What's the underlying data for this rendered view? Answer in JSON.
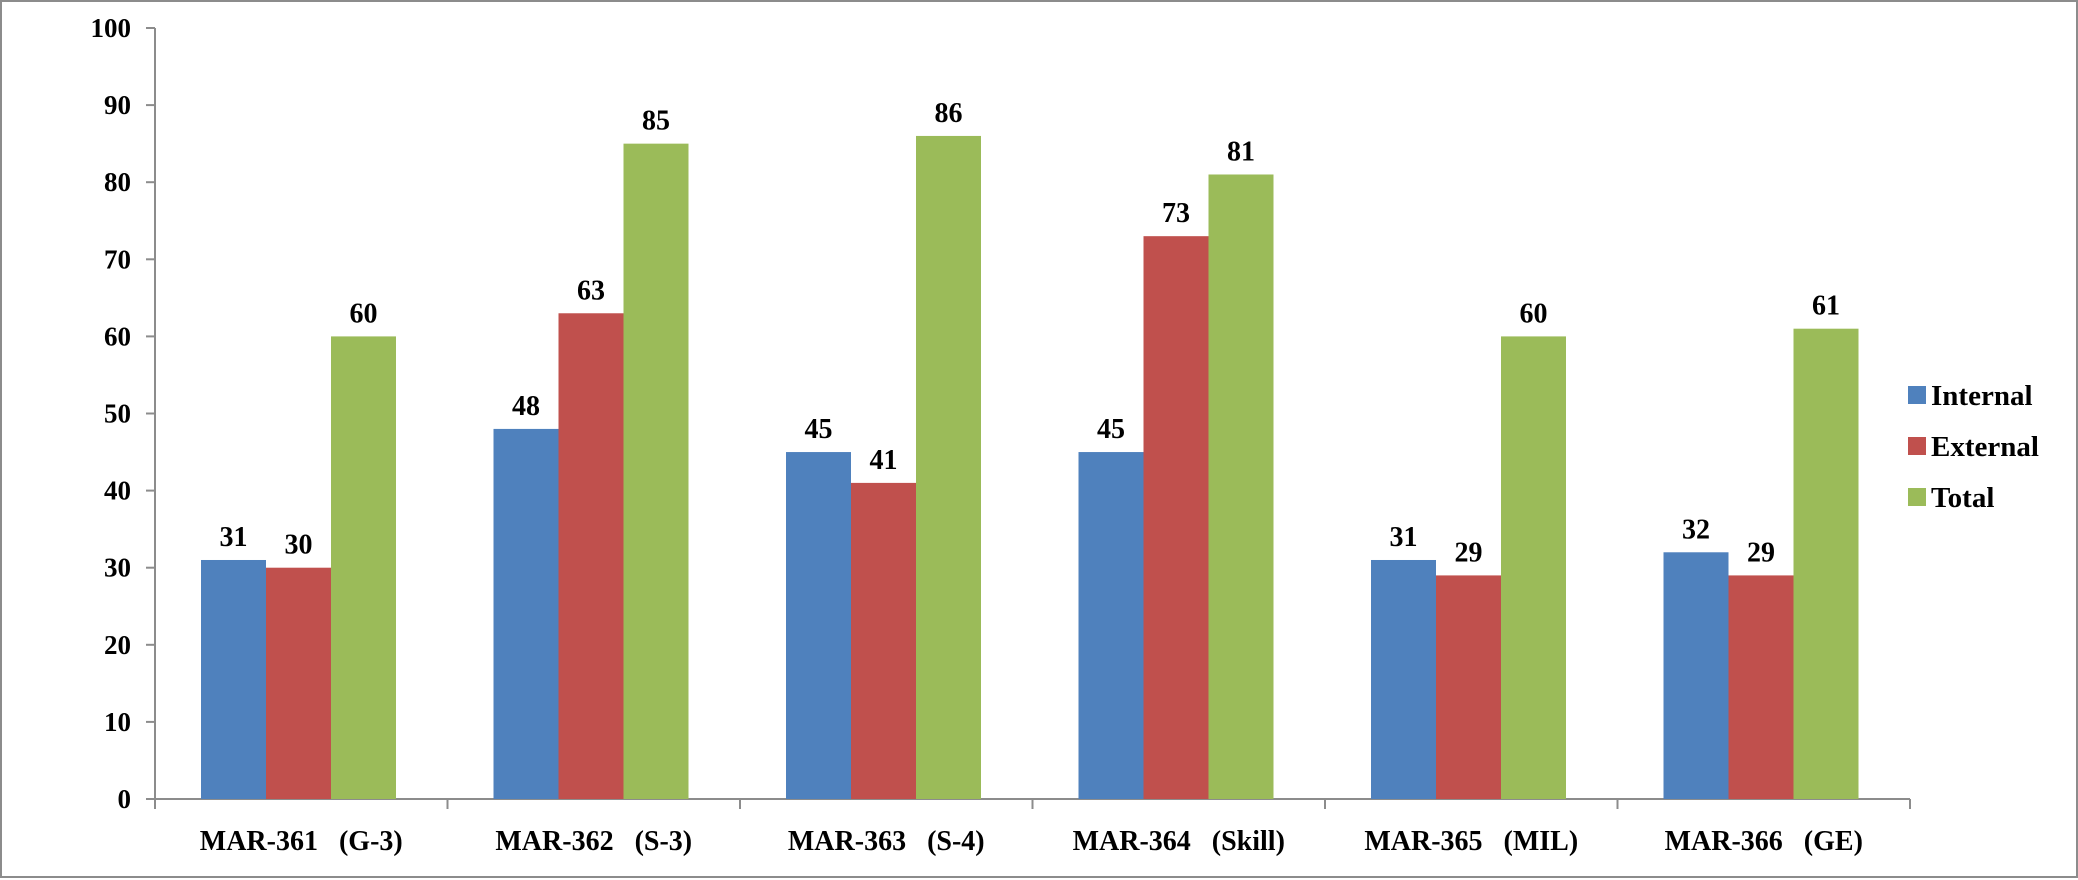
{
  "chart_data": {
    "type": "bar",
    "categories": [
      "MAR-361   (G-3)",
      "MAR-362   (S-3)",
      "MAR-363   (S-4)",
      "MAR-364   (Skill)",
      "MAR-365   (MIL)",
      "MAR-366   (GE)"
    ],
    "series": [
      {
        "name": "Internal",
        "color": "#4f81bd",
        "values": [
          31,
          48,
          45,
          45,
          31,
          32
        ]
      },
      {
        "name": "External",
        "color": "#c0504d",
        "values": [
          30,
          63,
          41,
          73,
          29,
          29
        ]
      },
      {
        "name": "Total",
        "color": "#9bbb59",
        "values": [
          60,
          85,
          86,
          81,
          60,
          61
        ]
      }
    ],
    "ylim": [
      0,
      100
    ],
    "yticks": [
      0,
      10,
      20,
      30,
      40,
      50,
      60,
      70,
      80,
      90,
      100
    ],
    "grid": false,
    "legend": "right",
    "data_labels": true
  }
}
